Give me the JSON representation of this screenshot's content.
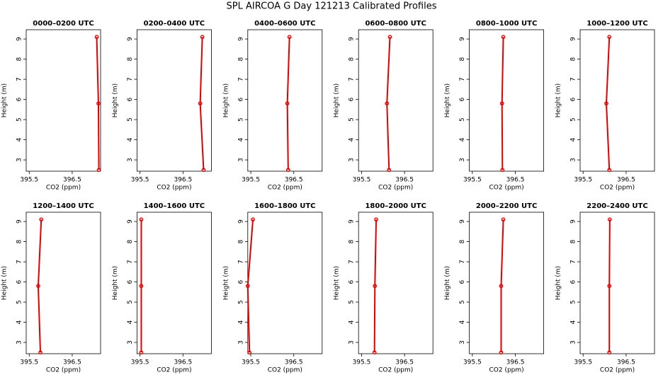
{
  "title": "SPL AIRCOA G  Day 121213  Calibrated Profiles",
  "chart_data": [
    {
      "type": "line",
      "title": "0000–0200 UTC",
      "xlabel": "CO2 (ppm)",
      "ylabel": "Height (m)",
      "color": "#dd0000",
      "x": [
        397.12,
        397.11,
        397.07
      ],
      "values": [
        2.5,
        5.8,
        9.1
      ],
      "xlim": [
        395.43,
        397.16
      ],
      "ylim": [
        2.44,
        9.46
      ],
      "xticks": [
        395.5,
        396.5
      ],
      "yticks": [
        3,
        4,
        5,
        6,
        7,
        8,
        9
      ]
    },
    {
      "type": "line",
      "title": "0200–0400 UTC",
      "xlabel": "CO2 (ppm)",
      "ylabel": "Height (m)",
      "color": "#dd0000",
      "x": [
        396.98,
        396.9,
        396.95
      ],
      "values": [
        2.5,
        5.8,
        9.1
      ],
      "xlim": [
        395.43,
        397.16
      ],
      "ylim": [
        2.44,
        9.46
      ],
      "xticks": [
        395.5,
        396.5
      ],
      "yticks": [
        3,
        4,
        5,
        6,
        7,
        8,
        9
      ]
    },
    {
      "type": "line",
      "title": "0400–0600 UTC",
      "xlabel": "CO2 (ppm)",
      "ylabel": "Height (m)",
      "color": "#dd0000",
      "x": [
        396.37,
        396.35,
        396.4
      ],
      "values": [
        2.5,
        5.8,
        9.1
      ],
      "xlim": [
        395.43,
        397.16
      ],
      "ylim": [
        2.44,
        9.46
      ],
      "xticks": [
        395.5,
        396.5
      ],
      "yticks": [
        3,
        4,
        5,
        6,
        7,
        8,
        9
      ]
    },
    {
      "type": "line",
      "title": "0600–0800 UTC",
      "xlabel": "CO2 (ppm)",
      "ylabel": "Height (m)",
      "color": "#dd0000",
      "x": [
        396.14,
        396.09,
        396.16
      ],
      "values": [
        2.5,
        5.8,
        9.1
      ],
      "xlim": [
        395.43,
        397.16
      ],
      "ylim": [
        2.44,
        9.46
      ],
      "xticks": [
        395.5,
        396.5
      ],
      "yticks": [
        3,
        4,
        5,
        6,
        7,
        8,
        9
      ]
    },
    {
      "type": "line",
      "title": "0800–1000 UTC",
      "xlabel": "CO2 (ppm)",
      "ylabel": "Height (m)",
      "color": "#dd0000",
      "x": [
        396.2,
        396.19,
        396.22
      ],
      "values": [
        2.5,
        5.8,
        9.1
      ],
      "xlim": [
        395.43,
        397.16
      ],
      "ylim": [
        2.44,
        9.46
      ],
      "xticks": [
        395.5,
        396.5
      ],
      "yticks": [
        3,
        4,
        5,
        6,
        7,
        8,
        9
      ]
    },
    {
      "type": "line",
      "title": "1000–1200 UTC",
      "xlabel": "CO2 (ppm)",
      "ylabel": "Height (m)",
      "color": "#dd0000",
      "x": [
        396.11,
        396.04,
        396.11
      ],
      "values": [
        2.5,
        5.8,
        9.1
      ],
      "xlim": [
        395.43,
        397.16
      ],
      "ylim": [
        2.44,
        9.46
      ],
      "xticks": [
        395.5,
        396.5
      ],
      "yticks": [
        3,
        4,
        5,
        6,
        7,
        8,
        9
      ]
    },
    {
      "type": "line",
      "title": "1200–1400 UTC",
      "xlabel": "CO2 (ppm)",
      "ylabel": "Height (m)",
      "color": "#dd0000",
      "x": [
        395.76,
        395.71,
        395.78
      ],
      "values": [
        2.5,
        5.8,
        9.1
      ],
      "xlim": [
        395.43,
        397.16
      ],
      "ylim": [
        2.44,
        9.46
      ],
      "xticks": [
        395.5,
        396.5
      ],
      "yticks": [
        3,
        4,
        5,
        6,
        7,
        8,
        9
      ]
    },
    {
      "type": "line",
      "title": "1400–1600 UTC",
      "xlabel": "CO2 (ppm)",
      "ylabel": "Height (m)",
      "color": "#dd0000",
      "x": [
        395.53,
        395.53,
        395.53
      ],
      "values": [
        2.5,
        5.8,
        9.1
      ],
      "xlim": [
        395.43,
        397.16
      ],
      "ylim": [
        2.44,
        9.46
      ],
      "xticks": [
        395.5,
        396.5
      ],
      "yticks": [
        3,
        4,
        5,
        6,
        7,
        8,
        9
      ]
    },
    {
      "type": "line",
      "title": "1600–1800 UTC",
      "xlabel": "CO2 (ppm)",
      "ylabel": "Height (m)",
      "color": "#dd0000",
      "x": [
        395.47,
        395.43,
        395.55
      ],
      "values": [
        2.5,
        5.8,
        9.1
      ],
      "xlim": [
        395.43,
        397.16
      ],
      "ylim": [
        2.44,
        9.46
      ],
      "xticks": [
        395.5,
        396.5
      ],
      "yticks": [
        3,
        4,
        5,
        6,
        7,
        8,
        9
      ]
    },
    {
      "type": "line",
      "title": "1800–2000 UTC",
      "xlabel": "CO2 (ppm)",
      "ylabel": "Height (m)",
      "color": "#dd0000",
      "x": [
        395.8,
        395.81,
        395.84
      ],
      "values": [
        2.5,
        5.8,
        9.1
      ],
      "xlim": [
        395.43,
        397.16
      ],
      "ylim": [
        2.44,
        9.46
      ],
      "xticks": [
        395.5,
        396.5
      ],
      "yticks": [
        3,
        4,
        5,
        6,
        7,
        8,
        9
      ]
    },
    {
      "type": "line",
      "title": "2000–2200 UTC",
      "xlabel": "CO2 (ppm)",
      "ylabel": "Height (m)",
      "color": "#dd0000",
      "x": [
        396.17,
        396.17,
        396.22
      ],
      "values": [
        2.5,
        5.8,
        9.1
      ],
      "xlim": [
        395.43,
        397.16
      ],
      "ylim": [
        2.44,
        9.46
      ],
      "xticks": [
        395.5,
        396.5
      ],
      "yticks": [
        3,
        4,
        5,
        6,
        7,
        8,
        9
      ]
    },
    {
      "type": "line",
      "title": "2200–2400 UTC",
      "xlabel": "CO2 (ppm)",
      "ylabel": "Height (m)",
      "color": "#dd0000",
      "x": [
        396.11,
        396.11,
        396.12
      ],
      "values": [
        2.5,
        5.8,
        9.1
      ],
      "xlim": [
        395.43,
        397.16
      ],
      "ylim": [
        2.44,
        9.46
      ],
      "xticks": [
        395.5,
        396.5
      ],
      "yticks": [
        3,
        4,
        5,
        6,
        7,
        8,
        9
      ]
    }
  ]
}
